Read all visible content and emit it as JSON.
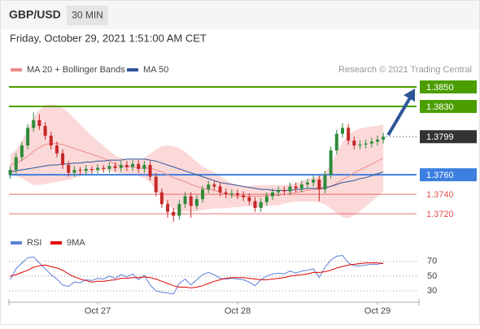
{
  "header": {
    "symbol": "GBP/USD",
    "interval": "30 MIN",
    "timestamp": "Friday, October 29, 2021 1:51:00 AM CET"
  },
  "chart_data": [
    {
      "type": "candlestick",
      "credit": "Research © 2021 Trading Central",
      "ylim": [
        1.3706,
        1.386
      ],
      "xlim": [
        -0.5,
        70.4
      ],
      "xticks": [
        {
          "value": 15,
          "label": "Oct 27"
        },
        {
          "value": 39,
          "label": "Oct 28"
        },
        {
          "value": 63,
          "label": "Oct 29"
        }
      ],
      "up_color": "#2e8b3a",
      "down_color": "#c62828",
      "open": [
        1.376,
        1.3765,
        1.3778,
        1.379,
        1.3808,
        1.3816,
        1.381,
        1.38,
        1.379,
        1.3782,
        1.377,
        1.3762,
        1.3765,
        1.3764,
        1.3766,
        1.3765,
        1.3767,
        1.3766,
        1.3769,
        1.3767,
        1.377,
        1.3768,
        1.3771,
        1.3766,
        1.377,
        1.3758,
        1.3742,
        1.373,
        1.3722,
        1.3718,
        1.373,
        1.3738,
        1.3728,
        1.3735,
        1.3745,
        1.375,
        1.3748,
        1.3742,
        1.374,
        1.3741,
        1.3739,
        1.3737,
        1.3733,
        1.3726,
        1.3732,
        1.3738,
        1.3742,
        1.3744,
        1.3743,
        1.3748,
        1.3746,
        1.375,
        1.3752,
        1.3755,
        1.3745,
        1.376,
        1.3785,
        1.3802,
        1.3808,
        1.3795,
        1.379,
        1.3791,
        1.3792,
        1.3794,
        1.3796
      ],
      "high": [
        1.3769,
        1.3782,
        1.3794,
        1.3812,
        1.3824,
        1.3822,
        1.3814,
        1.3804,
        1.3794,
        1.3786,
        1.3774,
        1.3769,
        1.3768,
        1.377,
        1.3769,
        1.3771,
        1.377,
        1.3773,
        1.3773,
        1.3774,
        1.3774,
        1.3775,
        1.3775,
        1.3774,
        1.3774,
        1.3762,
        1.3746,
        1.3734,
        1.3726,
        1.3734,
        1.3742,
        1.3742,
        1.3739,
        1.3749,
        1.3754,
        1.3754,
        1.3752,
        1.3746,
        1.3745,
        1.3745,
        1.3743,
        1.3741,
        1.3737,
        1.3736,
        1.3742,
        1.3746,
        1.3748,
        1.3748,
        1.3752,
        1.3752,
        1.3754,
        1.3756,
        1.3759,
        1.3759,
        1.3764,
        1.3789,
        1.3806,
        1.3813,
        1.3812,
        1.3799,
        1.3795,
        1.3796,
        1.3798,
        1.38,
        1.3803
      ],
      "low": [
        1.3756,
        1.3761,
        1.3774,
        1.3786,
        1.3804,
        1.3806,
        1.3796,
        1.3786,
        1.3778,
        1.3766,
        1.3758,
        1.3758,
        1.376,
        1.376,
        1.3761,
        1.3761,
        1.3762,
        1.3762,
        1.3763,
        1.3763,
        1.3764,
        1.3764,
        1.3762,
        1.3762,
        1.3754,
        1.3738,
        1.3726,
        1.3716,
        1.3712,
        1.3714,
        1.3726,
        1.3716,
        1.3724,
        1.3731,
        1.3741,
        1.3744,
        1.3738,
        1.3736,
        1.3736,
        1.3735,
        1.3733,
        1.3729,
        1.3722,
        1.3722,
        1.3728,
        1.3734,
        1.3738,
        1.3739,
        1.3739,
        1.3742,
        1.3742,
        1.3746,
        1.3748,
        1.3733,
        1.3741,
        1.3756,
        1.3781,
        1.3798,
        1.3791,
        1.3786,
        1.3786,
        1.3787,
        1.3788,
        1.379,
        1.3792
      ],
      "close": [
        1.3765,
        1.3778,
        1.379,
        1.3808,
        1.3816,
        1.381,
        1.38,
        1.379,
        1.3782,
        1.377,
        1.3762,
        1.3765,
        1.3764,
        1.3766,
        1.3765,
        1.3767,
        1.3766,
        1.3769,
        1.3767,
        1.377,
        1.3768,
        1.3771,
        1.3766,
        1.377,
        1.3758,
        1.3742,
        1.373,
        1.3722,
        1.3718,
        1.373,
        1.3738,
        1.3728,
        1.3735,
        1.3745,
        1.375,
        1.3748,
        1.3742,
        1.374,
        1.3741,
        1.3739,
        1.3737,
        1.3733,
        1.3726,
        1.3732,
        1.3738,
        1.3742,
        1.3744,
        1.3743,
        1.3748,
        1.3746,
        1.375,
        1.3752,
        1.3755,
        1.3745,
        1.376,
        1.3785,
        1.3802,
        1.3808,
        1.3795,
        1.379,
        1.3791,
        1.3792,
        1.3794,
        1.3796,
        1.3799
      ],
      "series": [
        {
          "name": "MA 20 + Bollinger Bands",
          "color": "#f08a8a",
          "band_color": "#fcd9d9",
          "values": [
            1.377,
            1.3772,
            1.3775,
            1.3779,
            1.3784,
            1.3788,
            1.3791,
            1.3792,
            1.3792,
            1.3791,
            1.3789,
            1.3787,
            1.3785,
            1.3783,
            1.3781,
            1.3779,
            1.3777,
            1.3774,
            1.3771,
            1.3769,
            1.3768,
            1.3768,
            1.3767,
            1.3767,
            1.3767,
            1.3765,
            1.3763,
            1.376,
            1.3757,
            1.3755,
            1.3753,
            1.375,
            1.3748,
            1.3746,
            1.3745,
            1.3744,
            1.3742,
            1.374,
            1.3739,
            1.3738,
            1.3738,
            1.3738,
            1.3738,
            1.3738,
            1.3739,
            1.3739,
            1.3739,
            1.374,
            1.3741,
            1.3742,
            1.3743,
            1.3744,
            1.3745,
            1.3745,
            1.3746,
            1.3748,
            1.3751,
            1.3755,
            1.3758,
            1.3762,
            1.3765,
            1.3768,
            1.3771,
            1.3774,
            1.3777
          ],
          "upper": [
            1.378,
            1.3785,
            1.3793,
            1.3805,
            1.3818,
            1.3826,
            1.3831,
            1.3832,
            1.3831,
            1.3828,
            1.3823,
            1.3817,
            1.3811,
            1.3805,
            1.3799,
            1.3794,
            1.3789,
            1.3784,
            1.3779,
            1.3777,
            1.3775,
            1.3775,
            1.3775,
            1.3777,
            1.3781,
            1.3785,
            1.3789,
            1.379,
            1.3789,
            1.3787,
            1.3783,
            1.3778,
            1.3773,
            1.3768,
            1.3765,
            1.3762,
            1.3758,
            1.3754,
            1.3751,
            1.3749,
            1.3748,
            1.3748,
            1.3749,
            1.3749,
            1.3749,
            1.3749,
            1.3749,
            1.3749,
            1.375,
            1.3751,
            1.3753,
            1.3755,
            1.3757,
            1.3758,
            1.3762,
            1.377,
            1.3781,
            1.3793,
            1.38,
            1.3805,
            1.3807,
            1.3808,
            1.3809,
            1.381,
            1.3811
          ],
          "lower": [
            1.376,
            1.3759,
            1.3757,
            1.3753,
            1.375,
            1.375,
            1.3751,
            1.3752,
            1.3753,
            1.3754,
            1.3755,
            1.3757,
            1.3759,
            1.3761,
            1.3763,
            1.3764,
            1.3765,
            1.3764,
            1.3763,
            1.3761,
            1.3761,
            1.3761,
            1.3759,
            1.3757,
            1.3753,
            1.3745,
            1.3737,
            1.373,
            1.3725,
            1.3723,
            1.3723,
            1.3722,
            1.3723,
            1.3724,
            1.3725,
            1.3726,
            1.3726,
            1.3726,
            1.3727,
            1.3727,
            1.3728,
            1.3728,
            1.3727,
            1.3727,
            1.3729,
            1.3729,
            1.3729,
            1.3731,
            1.3732,
            1.3733,
            1.3733,
            1.3733,
            1.3733,
            1.3732,
            1.373,
            1.3726,
            1.3721,
            1.3717,
            1.3716,
            1.3719,
            1.3723,
            1.3728,
            1.3733,
            1.3738,
            1.3743
          ]
        },
        {
          "name": "MA 50",
          "color": "#2e5597",
          "values": [
            1.3763,
            1.3764,
            1.3765,
            1.3766,
            1.3767,
            1.3768,
            1.3769,
            1.377,
            1.377,
            1.3771,
            1.3771,
            1.3772,
            1.3772,
            1.3773,
            1.3773,
            1.3774,
            1.3774,
            1.3775,
            1.3775,
            1.3775,
            1.3776,
            1.3776,
            1.3776,
            1.3776,
            1.3775,
            1.3774,
            1.3772,
            1.377,
            1.3768,
            1.3766,
            1.3764,
            1.3762,
            1.376,
            1.3758,
            1.3756,
            1.3754,
            1.3752,
            1.3751,
            1.375,
            1.3749,
            1.3748,
            1.3747,
            1.3746,
            1.3745,
            1.3745,
            1.3744,
            1.3744,
            1.3744,
            1.3744,
            1.3745,
            1.3745,
            1.3746,
            1.3746,
            1.3746,
            1.3747,
            1.3748,
            1.375,
            1.3752,
            1.3753,
            1.3754,
            1.3756,
            1.3757,
            1.3759,
            1.3761,
            1.3763
          ]
        }
      ],
      "levels": [
        {
          "value": 1.385,
          "label": "1.3850",
          "color": "#4c9e00",
          "line": "solid",
          "boxed": true
        },
        {
          "value": 1.383,
          "label": "1.3830",
          "color": "#4c9e00",
          "line": "solid",
          "boxed": true
        },
        {
          "value": 1.3799,
          "label": "1.3799",
          "color": "#333333",
          "line": "dotted",
          "boxed": true
        },
        {
          "value": 1.376,
          "label": "1.3760",
          "color": "#3d7fe0",
          "line": "solid",
          "boxed": true
        },
        {
          "value": 1.374,
          "label": "1.3740",
          "color": "#e05050",
          "line": "thin",
          "boxed": false
        },
        {
          "value": 1.372,
          "label": "1.3720",
          "color": "#e05050",
          "line": "thin",
          "boxed": false
        }
      ]
    },
    {
      "type": "line",
      "ylim": [
        19,
        83
      ],
      "yticks": [
        30,
        50,
        70
      ],
      "series": [
        {
          "name": "RSI",
          "color": "#5b7fd6",
          "values": [
            45,
            60,
            68,
            75,
            76,
            68,
            60,
            52,
            46,
            38,
            36,
            42,
            41,
            45,
            44,
            47,
            46,
            50,
            47,
            52,
            49,
            53,
            45,
            51,
            38,
            30,
            28,
            27,
            26,
            40,
            46,
            38,
            45,
            52,
            55,
            52,
            47,
            46,
            47,
            46,
            45,
            42,
            37,
            45,
            50,
            53,
            54,
            53,
            57,
            54,
            57,
            58,
            60,
            48,
            62,
            72,
            77,
            78,
            68,
            64,
            64,
            65,
            66,
            66,
            68
          ]
        },
        {
          "name": "9MA",
          "color": "#e00000",
          "values": [
            50,
            52,
            55,
            58,
            62,
            64,
            65,
            63,
            61,
            58,
            53,
            49,
            46,
            44,
            42,
            43,
            43,
            44,
            45,
            47,
            47,
            48,
            48,
            49,
            48,
            46,
            43,
            40,
            37,
            35,
            35,
            34,
            35,
            37,
            40,
            43,
            45,
            47,
            48,
            48,
            48,
            47,
            46,
            45,
            45,
            46,
            47,
            48,
            50,
            51,
            52,
            53,
            55,
            55,
            56,
            58,
            61,
            63,
            65,
            66,
            67,
            68,
            68,
            68,
            67
          ]
        }
      ]
    }
  ]
}
